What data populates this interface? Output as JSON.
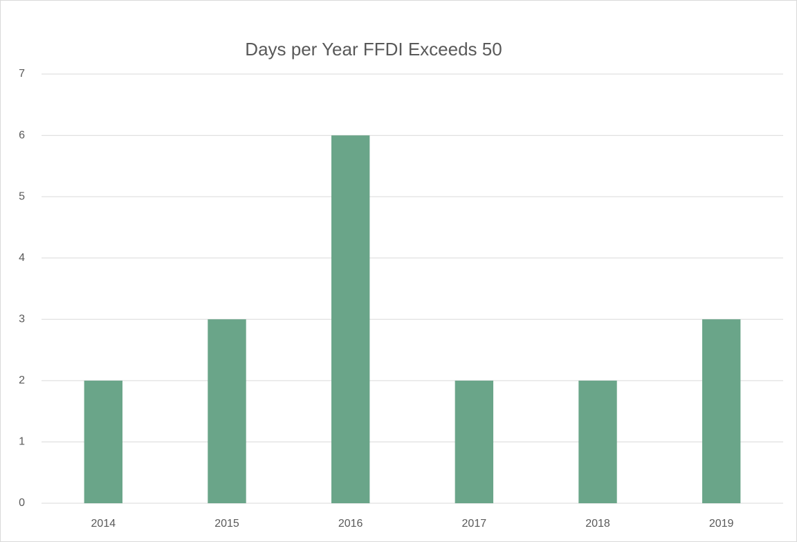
{
  "chart_data": {
    "type": "bar",
    "title": "Days per Year FFDI Exceeds 50",
    "categories": [
      "2014",
      "2015",
      "2016",
      "2017",
      "2018",
      "2019"
    ],
    "values": [
      2,
      3,
      6,
      2,
      2,
      3
    ],
    "color": "#6aa589",
    "ylim": [
      0,
      7
    ],
    "yticks": [
      0,
      1,
      2,
      3,
      4,
      5,
      6,
      7
    ],
    "grid": true
  }
}
